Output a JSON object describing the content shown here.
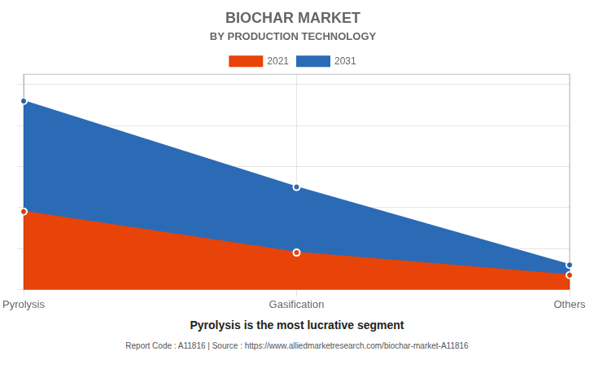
{
  "chart_data": {
    "type": "area",
    "title": "BIOCHAR MARKET",
    "subtitle": "BY PRODUCTION TECHNOLOGY",
    "caption": "Pyrolysis is the most lucrative segment",
    "footer": "Report Code : A11816  |  Source : https://www.alliedmarketresearch.com/biochar-market-A11816",
    "categories": [
      "Pyrolysis",
      "Gasification",
      "Others"
    ],
    "series": [
      {
        "name": "2021",
        "color": "#E8440A",
        "values": [
          0.38,
          0.18,
          0.07
        ]
      },
      {
        "name": "2031",
        "color": "#2B6BB5",
        "values": [
          0.92,
          0.5,
          0.12
        ]
      }
    ],
    "ylim": [
      0,
      1.05
    ],
    "yticks": [
      0,
      0.2,
      0.4,
      0.6,
      0.8,
      1.0
    ],
    "grid": true,
    "legend": "top",
    "marker": "circle",
    "tick_labels": "x"
  }
}
